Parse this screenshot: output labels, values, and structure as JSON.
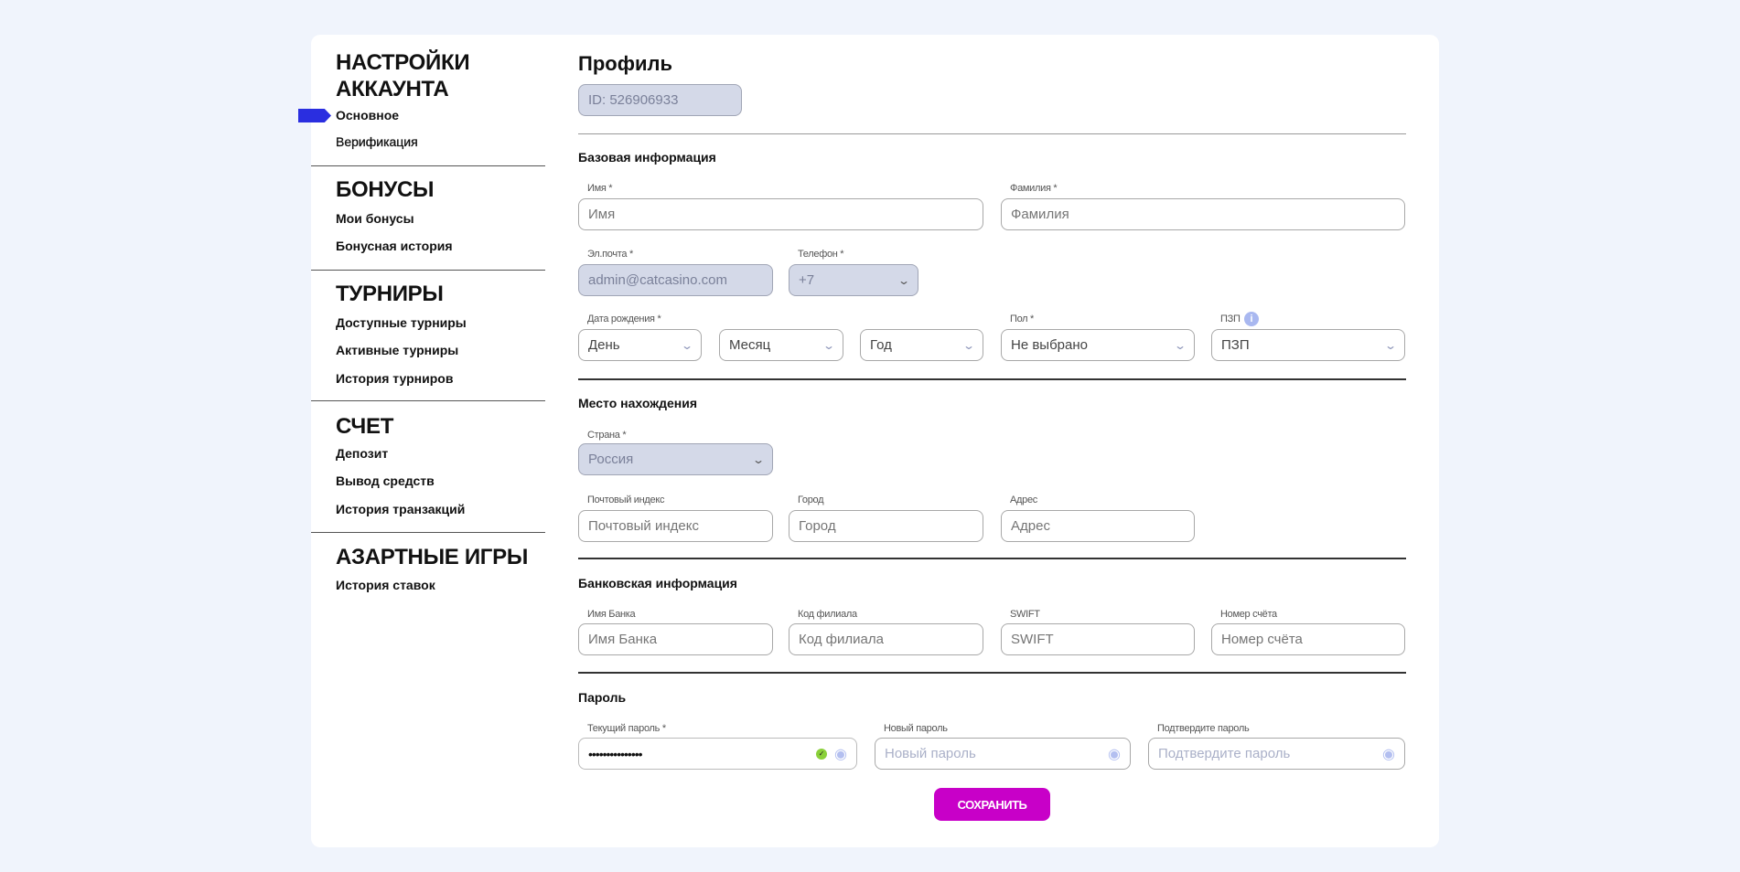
{
  "sidebar": {
    "sections": [
      {
        "title": "НАСТРОЙКИ АККАУНТА",
        "items": [
          "Основное",
          "Верификация"
        ]
      },
      {
        "title": "БОНУСЫ",
        "items": [
          "Мои бонусы",
          "Бонусная история"
        ]
      },
      {
        "title": "ТУРНИРЫ",
        "items": [
          "Доступные турниры",
          "Активные турниры",
          "История турниров"
        ]
      },
      {
        "title": "СЧЕТ",
        "items": [
          "Депозит",
          "Вывод средств",
          "История транзакций"
        ]
      },
      {
        "title": "АЗАРТНЫЕ ИГРЫ",
        "items": [
          "История ставок"
        ]
      }
    ],
    "title_line1": "НАСТРОЙКИ",
    "title_line2": "АККАУНТА",
    "active_item": "Основное",
    "marker_color": "#2a2ee0"
  },
  "main": {
    "title": "Профиль",
    "id": "ID: 526906933",
    "basic": {
      "title": "Базовая информация",
      "first_name": {
        "label": "Имя *",
        "placeholder": "Имя"
      },
      "last_name": {
        "label": "Фамилия *",
        "placeholder": "Фамилия"
      },
      "email": {
        "label": "Эл.почта *",
        "value": "admin@catcasino.com"
      },
      "phone": {
        "label": "Телефон *",
        "value": "+7"
      },
      "birth": {
        "label": "Дата рождения *",
        "day": "День",
        "month": "Месяц",
        "year": "Год"
      },
      "gender": {
        "label": "Пол *",
        "value": "Не выбрано"
      },
      "pzp": {
        "label": "ПЗП",
        "value": "ПЗП"
      }
    },
    "location": {
      "title": "Место нахождения",
      "country": {
        "label": "Страна *",
        "value": "Россия"
      },
      "zip": {
        "label": "Почтовый индекс",
        "placeholder": "Почтовый индекс"
      },
      "city": {
        "label": "Город",
        "placeholder": "Город"
      },
      "address": {
        "label": "Адрес",
        "placeholder": "Адрес"
      }
    },
    "bank": {
      "title": "Банковская информация",
      "bank_name": {
        "label": "Имя Банка",
        "placeholder": "Имя Банка"
      },
      "branch": {
        "label": "Код филиала",
        "placeholder": "Код филиала"
      },
      "swift": {
        "label": "SWIFT",
        "placeholder": "SWIFT"
      },
      "account": {
        "label": "Номер счёта",
        "placeholder": "Номер счёта"
      }
    },
    "password": {
      "title": "Пароль",
      "current": {
        "label": "Текущий пароль *",
        "value": "•••••••••••••••"
      },
      "new": {
        "label": "Новый пароль",
        "placeholder": "Новый пароль"
      },
      "confirm": {
        "label": "Подтвердите пароль",
        "placeholder": "Подтвердите пароль"
      }
    },
    "save_label": "СОХРАНИТЬ",
    "save_color": "#c800c8"
  }
}
